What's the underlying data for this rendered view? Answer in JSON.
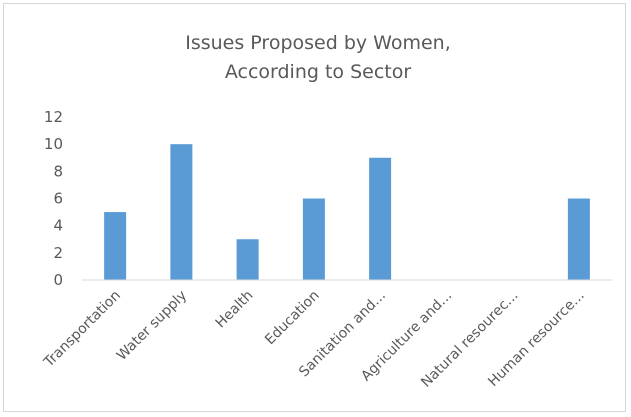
{
  "chart_data": {
    "type": "bar",
    "title_lines": [
      "Issues Proposed by Women,",
      "According to Sector"
    ],
    "categories": [
      "Transportation",
      "Water supply",
      "Health",
      "Education",
      "Sanitation and...",
      "Agriculture and...",
      "Natural resourec...",
      "Human resource..."
    ],
    "values": [
      5,
      10,
      3,
      6,
      9,
      0,
      0,
      6
    ],
    "xlabel": "",
    "ylabel": "",
    "ylim": [
      0,
      12
    ],
    "yticks": [
      0,
      2,
      4,
      6,
      8,
      10,
      12
    ],
    "grid": false,
    "legend": "none",
    "bar_color": "#5b9bd5"
  }
}
